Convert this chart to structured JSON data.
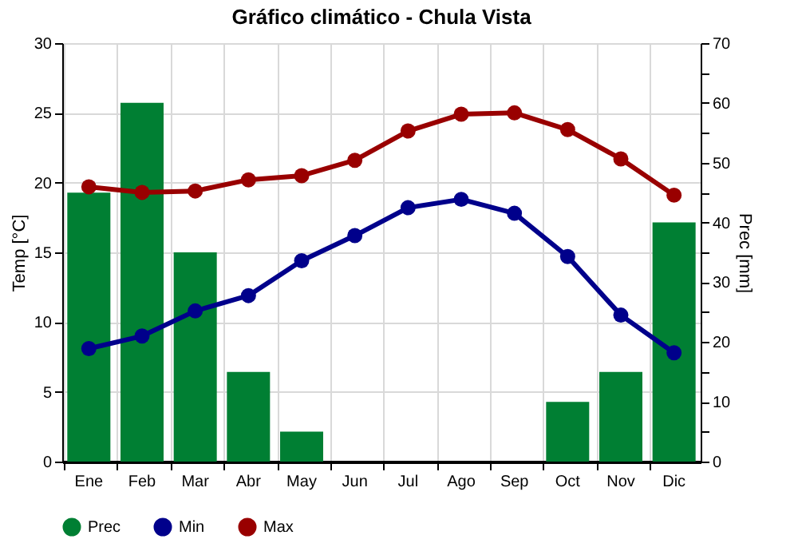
{
  "chart_data": {
    "type": "line",
    "title": "Gráfico climático - Chula Vista",
    "ylabel": "Temp [°C]",
    "y2label": "Prec [mm]",
    "categories": [
      "Ene",
      "Feb",
      "Mar",
      "Abr",
      "May",
      "Jun",
      "Jul",
      "Ago",
      "Sep",
      "Oct",
      "Nov",
      "Dic"
    ],
    "series": [
      {
        "name": "Prec",
        "type": "bar",
        "axis": "y2",
        "color": "#007f33",
        "values": [
          45,
          60,
          35,
          15,
          5,
          0,
          0,
          0,
          0,
          10,
          15,
          40
        ]
      },
      {
        "name": "Min",
        "color": "#00008b",
        "values": [
          8.1,
          9.0,
          10.8,
          11.9,
          14.4,
          16.2,
          18.2,
          18.8,
          17.8,
          14.7,
          10.5,
          7.8
        ]
      },
      {
        "name": "Max",
        "color": "#990000",
        "values": [
          19.7,
          19.3,
          19.4,
          20.2,
          20.5,
          21.6,
          23.7,
          24.9,
          25.0,
          23.8,
          21.7,
          19.1
        ]
      }
    ],
    "ylim": [
      0,
      30
    ],
    "yticks": [
      0,
      5,
      10,
      15,
      20,
      25,
      30
    ],
    "y2lim": [
      0,
      70
    ],
    "y2ticks": [
      0,
      {
        "value": 5,
        "label": null
      },
      10,
      {
        "value": 15,
        "label": null
      },
      20,
      {
        "value": 25,
        "label": null
      },
      30,
      {
        "value": 35,
        "label": null
      },
      40,
      {
        "value": 45,
        "label": null
      },
      50,
      {
        "value": 55,
        "label": null
      },
      60,
      {
        "value": 65,
        "label": null
      },
      70
    ],
    "grid": true,
    "legend": "bottom left",
    "marker": "circle",
    "line_style": "solid"
  }
}
